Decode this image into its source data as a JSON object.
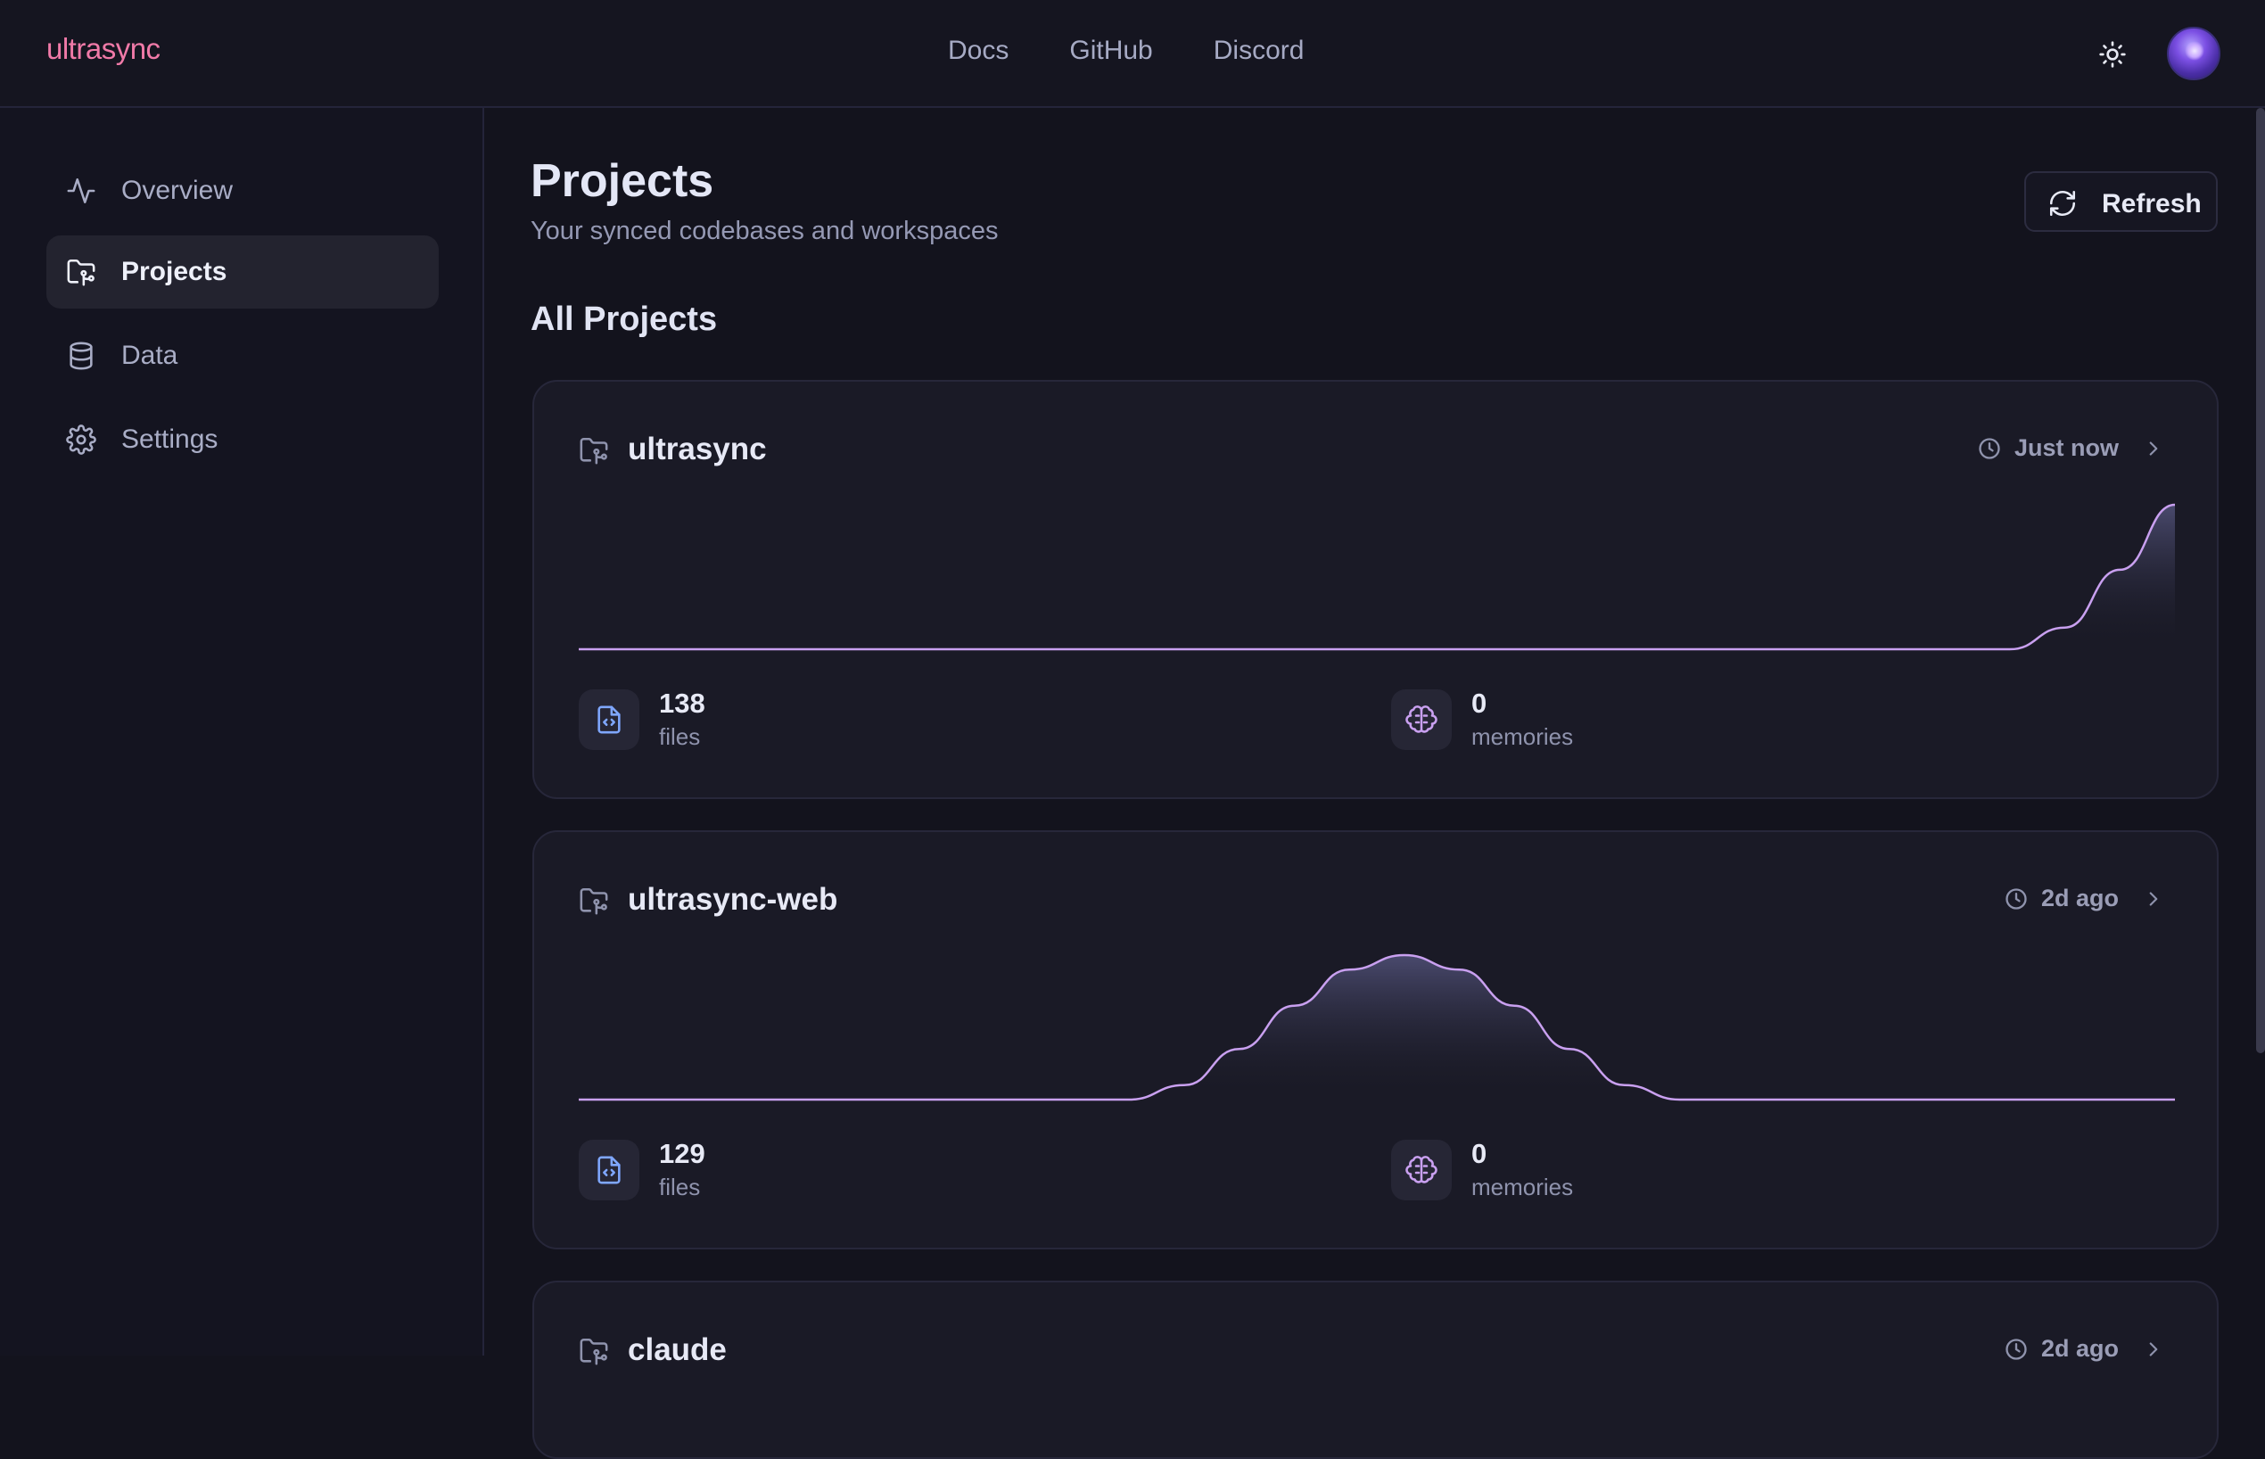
{
  "header": {
    "logo": "ultrasync",
    "nav": [
      "Docs",
      "GitHub",
      "Discord"
    ],
    "theme_toggle_icon": "sun-icon",
    "avatar_icon": "user-avatar"
  },
  "sidebar": {
    "items": [
      {
        "label": "Overview",
        "icon": "activity-icon",
        "active": false
      },
      {
        "label": "Projects",
        "icon": "folder-git-icon",
        "active": true
      },
      {
        "label": "Data",
        "icon": "database-icon",
        "active": false
      },
      {
        "label": "Settings",
        "icon": "gear-icon",
        "active": false
      }
    ]
  },
  "page": {
    "title": "Projects",
    "subtitle": "Your synced codebases and workspaces",
    "refresh_label": "Refresh",
    "section_title": "All Projects"
  },
  "colors": {
    "accent": "#c9a0f0",
    "logo": "#f07aa8",
    "background": "#13131d",
    "card": "#1a1a26"
  },
  "projects": [
    {
      "name": "ultrasync",
      "updated": "Just now",
      "files": "138",
      "files_label": "files",
      "memories": "0",
      "memories_label": "memories",
      "activity": [
        0,
        0,
        0,
        0,
        0,
        0,
        0,
        0,
        0,
        0,
        0,
        0,
        0,
        0,
        0,
        0,
        0,
        0,
        0,
        0,
        0,
        0,
        0,
        0,
        0,
        0,
        0,
        0.15,
        0.55,
        1.0
      ]
    },
    {
      "name": "ultrasync-web",
      "updated": "2d ago",
      "files": "129",
      "files_label": "files",
      "memories": "0",
      "memories_label": "memories",
      "activity": [
        0,
        0,
        0,
        0,
        0,
        0,
        0,
        0,
        0,
        0,
        0,
        0.1,
        0.35,
        0.65,
        0.9,
        1.0,
        0.9,
        0.65,
        0.35,
        0.1,
        0,
        0,
        0,
        0,
        0,
        0,
        0,
        0,
        0,
        0
      ]
    },
    {
      "name": "claude",
      "updated": "2d ago"
    }
  ]
}
